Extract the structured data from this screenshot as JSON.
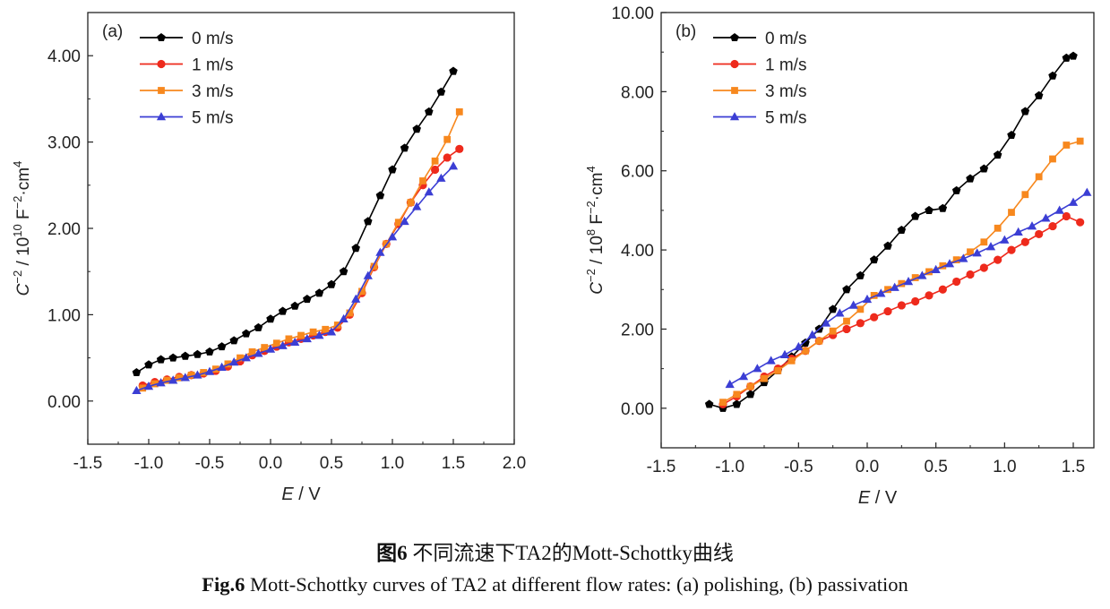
{
  "caption": {
    "cn_fig_label": "图",
    "cn_fig_num": "6",
    "cn_text": " 不同流速下TA2的Mott-Schottky曲线",
    "en_fig_label": "Fig.6",
    "en_text": " Mott-Schottky curves of TA2 at different flow rates: (a) polishing, (b) passivation"
  },
  "colors": {
    "0 m/s": "#000000",
    "1 m/s": "#ee2a1c",
    "3 m/s": "#f7881e",
    "5 m/s": "#3b3ed4"
  },
  "chart_data": [
    {
      "type": "line",
      "panel_label": "(a)",
      "xlabel_var": "E",
      "xlabel_unit": " / V",
      "ylabel_var": "C",
      "ylabel_exp": "−2",
      "ylabel_mid": " / 10",
      "ylabel_pow": "10",
      "ylabel_unit_a": " F",
      "ylabel_unit_exp": "−2",
      "ylabel_unit_b": "·cm",
      "ylabel_unit_exp2": "4",
      "xlim": [
        -1.5,
        2.0
      ],
      "ylim": [
        -0.5,
        4.5
      ],
      "xticks": [
        -1.5,
        -1.0,
        -0.5,
        0.0,
        0.5,
        1.0,
        1.5,
        2.0
      ],
      "xtick_labels": [
        "-1.5",
        "-1.0",
        "-0.5",
        "0.0",
        "0.5",
        "1.0",
        "1.5",
        "2.0"
      ],
      "yticks": [
        0,
        1,
        2,
        3,
        4
      ],
      "ytick_labels": [
        "0.00",
        "1.00",
        "2.00",
        "3.00",
        "4.00"
      ],
      "legend_position": "top-left",
      "series": [
        {
          "name": "0 m/s",
          "marker": "pentagon",
          "points": [
            [
              -1.1,
              0.33
            ],
            [
              -1.0,
              0.42
            ],
            [
              -0.9,
              0.48
            ],
            [
              -0.8,
              0.5
            ],
            [
              -0.7,
              0.52
            ],
            [
              -0.6,
              0.54
            ],
            [
              -0.5,
              0.57
            ],
            [
              -0.4,
              0.63
            ],
            [
              -0.3,
              0.7
            ],
            [
              -0.2,
              0.78
            ],
            [
              -0.1,
              0.85
            ],
            [
              0.0,
              0.95
            ],
            [
              0.1,
              1.04
            ],
            [
              0.2,
              1.1
            ],
            [
              0.3,
              1.18
            ],
            [
              0.4,
              1.25
            ],
            [
              0.5,
              1.35
            ],
            [
              0.6,
              1.5
            ],
            [
              0.7,
              1.77
            ],
            [
              0.8,
              2.08
            ],
            [
              0.9,
              2.38
            ],
            [
              1.0,
              2.68
            ],
            [
              1.1,
              2.93
            ],
            [
              1.2,
              3.15
            ],
            [
              1.3,
              3.35
            ],
            [
              1.4,
              3.58
            ],
            [
              1.5,
              3.82
            ]
          ]
        },
        {
          "name": "1 m/s",
          "marker": "circle",
          "points": [
            [
              -1.05,
              0.18
            ],
            [
              -0.95,
              0.22
            ],
            [
              -0.85,
              0.25
            ],
            [
              -0.75,
              0.28
            ],
            [
              -0.65,
              0.3
            ],
            [
              -0.55,
              0.32
            ],
            [
              -0.45,
              0.35
            ],
            [
              -0.35,
              0.4
            ],
            [
              -0.25,
              0.46
            ],
            [
              -0.15,
              0.53
            ],
            [
              -0.05,
              0.58
            ],
            [
              0.05,
              0.63
            ],
            [
              0.15,
              0.68
            ],
            [
              0.25,
              0.72
            ],
            [
              0.35,
              0.76
            ],
            [
              0.45,
              0.8
            ],
            [
              0.55,
              0.85
            ],
            [
              0.65,
              1.0
            ],
            [
              0.75,
              1.25
            ],
            [
              0.85,
              1.55
            ],
            [
              0.95,
              1.82
            ],
            [
              1.05,
              2.05
            ],
            [
              1.15,
              2.3
            ],
            [
              1.25,
              2.5
            ],
            [
              1.35,
              2.68
            ],
            [
              1.45,
              2.82
            ],
            [
              1.55,
              2.92
            ]
          ]
        },
        {
          "name": "3 m/s",
          "marker": "square",
          "points": [
            [
              -1.05,
              0.15
            ],
            [
              -0.95,
              0.2
            ],
            [
              -0.85,
              0.24
            ],
            [
              -0.75,
              0.27
            ],
            [
              -0.65,
              0.3
            ],
            [
              -0.55,
              0.33
            ],
            [
              -0.45,
              0.37
            ],
            [
              -0.35,
              0.43
            ],
            [
              -0.25,
              0.5
            ],
            [
              -0.15,
              0.57
            ],
            [
              -0.05,
              0.62
            ],
            [
              0.05,
              0.67
            ],
            [
              0.15,
              0.72
            ],
            [
              0.25,
              0.76
            ],
            [
              0.35,
              0.8
            ],
            [
              0.45,
              0.83
            ],
            [
              0.55,
              0.88
            ],
            [
              0.65,
              1.02
            ],
            [
              0.75,
              1.27
            ],
            [
              0.85,
              1.56
            ],
            [
              0.95,
              1.82
            ],
            [
              1.05,
              2.07
            ],
            [
              1.15,
              2.3
            ],
            [
              1.25,
              2.55
            ],
            [
              1.35,
              2.78
            ],
            [
              1.45,
              3.03
            ],
            [
              1.55,
              3.35
            ]
          ]
        },
        {
          "name": "5 m/s",
          "marker": "triangle",
          "points": [
            [
              -1.1,
              0.12
            ],
            [
              -1.0,
              0.17
            ],
            [
              -0.9,
              0.21
            ],
            [
              -0.8,
              0.24
            ],
            [
              -0.7,
              0.27
            ],
            [
              -0.6,
              0.3
            ],
            [
              -0.5,
              0.34
            ],
            [
              -0.4,
              0.39
            ],
            [
              -0.3,
              0.45
            ],
            [
              -0.2,
              0.5
            ],
            [
              -0.1,
              0.55
            ],
            [
              0.0,
              0.6
            ],
            [
              0.1,
              0.64
            ],
            [
              0.2,
              0.68
            ],
            [
              0.3,
              0.72
            ],
            [
              0.4,
              0.76
            ],
            [
              0.5,
              0.8
            ],
            [
              0.6,
              0.95
            ],
            [
              0.7,
              1.18
            ],
            [
              0.8,
              1.45
            ],
            [
              0.9,
              1.72
            ],
            [
              1.0,
              1.9
            ],
            [
              1.1,
              2.08
            ],
            [
              1.2,
              2.25
            ],
            [
              1.3,
              2.42
            ],
            [
              1.4,
              2.58
            ],
            [
              1.5,
              2.72
            ]
          ]
        }
      ]
    },
    {
      "type": "line",
      "panel_label": "(b)",
      "xlabel_var": "E",
      "xlabel_unit": " / V",
      "ylabel_var": "C",
      "ylabel_exp": "−2",
      "ylabel_mid": " / 10",
      "ylabel_pow": "8",
      "ylabel_unit_a": " F",
      "ylabel_unit_exp": "−2",
      "ylabel_unit_b": "·cm",
      "ylabel_unit_exp2": "4",
      "xlim": [
        -1.5,
        1.65
      ],
      "ylim": [
        -1.0,
        10.0
      ],
      "xticks": [
        -1.5,
        -1.0,
        -0.5,
        0.0,
        0.5,
        1.0,
        1.5
      ],
      "xtick_labels": [
        "-1.5",
        "-1.0",
        "-0.5",
        "0.0",
        "0.5",
        "1.0",
        "1.5"
      ],
      "yticks": [
        0,
        2,
        4,
        6,
        8,
        10
      ],
      "ytick_labels": [
        "0.00",
        "2.00",
        "4.00",
        "6.00",
        "8.00",
        "10.00"
      ],
      "legend_position": "top-left",
      "series": [
        {
          "name": "0 m/s",
          "marker": "pentagon",
          "points": [
            [
              -1.15,
              0.1
            ],
            [
              -1.05,
              0.0
            ],
            [
              -0.95,
              0.1
            ],
            [
              -0.85,
              0.35
            ],
            [
              -0.75,
              0.65
            ],
            [
              -0.65,
              0.95
            ],
            [
              -0.55,
              1.3
            ],
            [
              -0.45,
              1.65
            ],
            [
              -0.35,
              2.0
            ],
            [
              -0.25,
              2.5
            ],
            [
              -0.15,
              3.0
            ],
            [
              -0.05,
              3.35
            ],
            [
              0.05,
              3.75
            ],
            [
              0.15,
              4.1
            ],
            [
              0.25,
              4.5
            ],
            [
              0.35,
              4.85
            ],
            [
              0.45,
              5.0
            ],
            [
              0.55,
              5.05
            ],
            [
              0.65,
              5.5
            ],
            [
              0.75,
              5.8
            ],
            [
              0.85,
              6.05
            ],
            [
              0.95,
              6.4
            ],
            [
              1.05,
              6.9
            ],
            [
              1.15,
              7.5
            ],
            [
              1.25,
              7.9
            ],
            [
              1.35,
              8.4
            ],
            [
              1.45,
              8.85
            ],
            [
              1.5,
              8.9
            ]
          ]
        },
        {
          "name": "1 m/s",
          "marker": "circle",
          "points": [
            [
              -1.05,
              0.1
            ],
            [
              -0.95,
              0.3
            ],
            [
              -0.85,
              0.55
            ],
            [
              -0.75,
              0.8
            ],
            [
              -0.65,
              1.0
            ],
            [
              -0.55,
              1.25
            ],
            [
              -0.45,
              1.45
            ],
            [
              -0.35,
              1.7
            ],
            [
              -0.25,
              1.85
            ],
            [
              -0.15,
              2.0
            ],
            [
              -0.05,
              2.15
            ],
            [
              0.05,
              2.3
            ],
            [
              0.15,
              2.45
            ],
            [
              0.25,
              2.6
            ],
            [
              0.35,
              2.7
            ],
            [
              0.45,
              2.85
            ],
            [
              0.55,
              3.0
            ],
            [
              0.65,
              3.2
            ],
            [
              0.75,
              3.38
            ],
            [
              0.85,
              3.55
            ],
            [
              0.95,
              3.75
            ],
            [
              1.05,
              4.0
            ],
            [
              1.15,
              4.2
            ],
            [
              1.25,
              4.4
            ],
            [
              1.35,
              4.6
            ],
            [
              1.45,
              4.85
            ],
            [
              1.55,
              4.7
            ]
          ]
        },
        {
          "name": "3 m/s",
          "marker": "square",
          "points": [
            [
              -1.05,
              0.15
            ],
            [
              -0.95,
              0.35
            ],
            [
              -0.85,
              0.55
            ],
            [
              -0.75,
              0.75
            ],
            [
              -0.65,
              0.95
            ],
            [
              -0.55,
              1.2
            ],
            [
              -0.45,
              1.45
            ],
            [
              -0.35,
              1.7
            ],
            [
              -0.25,
              1.95
            ],
            [
              -0.15,
              2.2
            ],
            [
              -0.05,
              2.5
            ],
            [
              0.05,
              2.85
            ],
            [
              0.15,
              3.0
            ],
            [
              0.25,
              3.15
            ],
            [
              0.35,
              3.3
            ],
            [
              0.45,
              3.45
            ],
            [
              0.55,
              3.6
            ],
            [
              0.65,
              3.75
            ],
            [
              0.75,
              3.95
            ],
            [
              0.85,
              4.2
            ],
            [
              0.95,
              4.55
            ],
            [
              1.05,
              4.95
            ],
            [
              1.15,
              5.4
            ],
            [
              1.25,
              5.85
            ],
            [
              1.35,
              6.3
            ],
            [
              1.45,
              6.65
            ],
            [
              1.55,
              6.75
            ]
          ]
        },
        {
          "name": "5 m/s",
          "marker": "triangle",
          "points": [
            [
              -1.0,
              0.6
            ],
            [
              -0.9,
              0.8
            ],
            [
              -0.8,
              1.0
            ],
            [
              -0.7,
              1.2
            ],
            [
              -0.6,
              1.35
            ],
            [
              -0.5,
              1.55
            ],
            [
              -0.4,
              1.85
            ],
            [
              -0.3,
              2.15
            ],
            [
              -0.2,
              2.4
            ],
            [
              -0.1,
              2.6
            ],
            [
              0.0,
              2.75
            ],
            [
              0.1,
              2.9
            ],
            [
              0.2,
              3.05
            ],
            [
              0.3,
              3.2
            ],
            [
              0.4,
              3.35
            ],
            [
              0.5,
              3.5
            ],
            [
              0.6,
              3.65
            ],
            [
              0.7,
              3.78
            ],
            [
              0.8,
              3.92
            ],
            [
              0.9,
              4.08
            ],
            [
              1.0,
              4.25
            ],
            [
              1.1,
              4.45
            ],
            [
              1.2,
              4.6
            ],
            [
              1.3,
              4.8
            ],
            [
              1.4,
              5.0
            ],
            [
              1.5,
              5.2
            ],
            [
              1.6,
              5.45
            ]
          ]
        }
      ]
    }
  ]
}
